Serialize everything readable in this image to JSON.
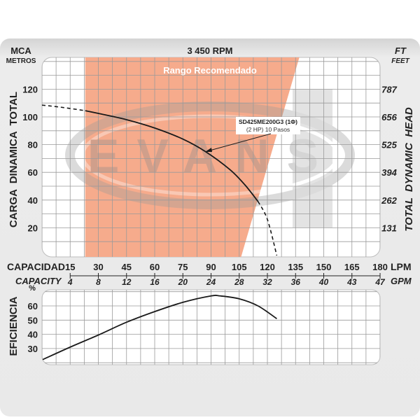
{
  "chart_data": [
    {
      "type": "line",
      "title": "3 450 RPM",
      "left_axis": {
        "unit_top": "MCA",
        "unit_bottom": "METROS",
        "label": "CARGA  DINAMICA  TOTAL",
        "ticks": [
          20,
          40,
          60,
          80,
          100,
          120
        ]
      },
      "right_axis": {
        "unit_top": "FT",
        "unit_bottom": "FEET",
        "label": "TOTAL  DYNAMIC  HEAD",
        "ticks": [
          "131",
          "262",
          "394",
          "525",
          "656",
          "787"
        ]
      },
      "xlim": [
        0,
        180
      ],
      "ylim": [
        0,
        143
      ],
      "grid": true,
      "recommended_range": {
        "label": "Rango Recomendado",
        "lpm_left": 23,
        "lpm_right_bottom": 106,
        "lpm_right_top": 137,
        "color": "#f6ab8c"
      },
      "series": [
        {
          "name": "SD425ME200G3 (1Φ)",
          "subtitle": "(2 HP)  10 Pasos",
          "color": "#1a1a1a",
          "x": [
            0,
            10,
            23,
            30,
            45,
            60,
            75,
            87,
            100,
            108,
            115,
            120,
            125
          ],
          "y": [
            108.5,
            107,
            104.5,
            102.5,
            98,
            92,
            84,
            75,
            62,
            51,
            39,
            26,
            0
          ],
          "solid_range_lpm": [
            23,
            115
          ]
        }
      ],
      "watermark": "EVANS"
    },
    {
      "type": "line",
      "axis_label": "EFICIENCIA",
      "unit": "%",
      "ticks": [
        30,
        40,
        50,
        60
      ],
      "xlim": [
        0,
        180
      ],
      "ylim": [
        20,
        71
      ],
      "grid": true,
      "series": [
        {
          "color": "#1a1a1a",
          "x": [
            0,
            15,
            30,
            45,
            60,
            75,
            90,
            95,
            105,
            115,
            125
          ],
          "y": [
            22,
            31,
            39.5,
            48.5,
            56,
            62.5,
            67,
            67,
            65,
            60,
            51
          ]
        }
      ]
    }
  ],
  "x_axis": {
    "lpm_label": "CAPACIDAD",
    "lpm_unit": "LPM",
    "lpm_ticks": [
      "15",
      "30",
      "45",
      "60",
      "75",
      "90",
      "105",
      "120",
      "135",
      "150",
      "165",
      "180"
    ],
    "gpm_label": "CAPACITY",
    "gpm_unit": "GPM",
    "gpm_ticks": [
      "4",
      "8",
      "12",
      "16",
      "20",
      "24",
      "28",
      "32",
      "36",
      "40",
      "43",
      "47"
    ]
  },
  "colors": {
    "frame": "#e6e6e6",
    "grid": "#9a9a9a",
    "range": "#f6ab8c",
    "curve": "#1a1a1a"
  }
}
